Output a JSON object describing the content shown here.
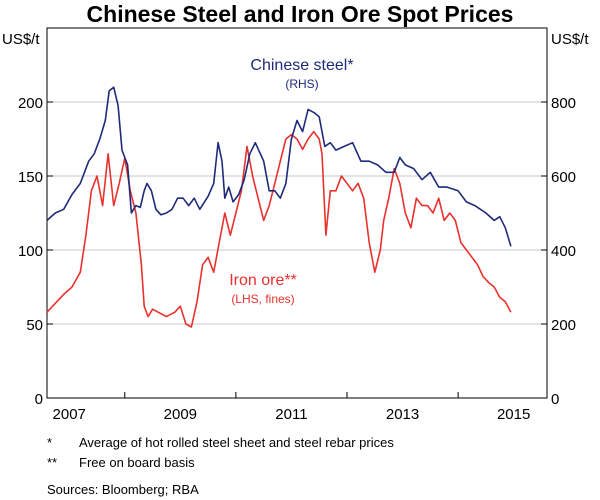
{
  "chart_data": {
    "type": "line",
    "title": "Chinese Steel and Iron Ore Spot Prices",
    "left_axis": {
      "unit": "US$/t",
      "ylim": [
        0,
        250
      ],
      "ticks": [
        0,
        50,
        100,
        150,
        200
      ]
    },
    "right_axis": {
      "unit": "US$/t",
      "ylim": [
        0,
        1000
      ],
      "ticks": [
        0,
        200,
        400,
        600,
        800
      ]
    },
    "x_axis": {
      "xlim": [
        2006.6,
        2015.6
      ],
      "tick_labels": [
        "2007",
        "2009",
        "2011",
        "2013",
        "2015"
      ],
      "label_positions": [
        2007,
        2009,
        2011,
        2013,
        2015
      ],
      "major_ticks": [
        2008,
        2010,
        2012,
        2014
      ]
    },
    "grid": true,
    "series": [
      {
        "name": "Chinese steel*",
        "sub": "(RHS)",
        "axis": "right",
        "color": "#1f2a7a",
        "x": [
          2006.6,
          2006.75,
          2006.9,
          2007.05,
          2007.2,
          2007.35,
          2007.45,
          2007.55,
          2007.65,
          2007.72,
          2007.8,
          2007.88,
          2007.95,
          2008.05,
          2008.12,
          2008.2,
          2008.28,
          2008.35,
          2008.4,
          2008.48,
          2008.56,
          2008.65,
          2008.75,
          2008.85,
          2008.95,
          2009.05,
          2009.15,
          2009.25,
          2009.35,
          2009.5,
          2009.6,
          2009.68,
          2009.75,
          2009.8,
          2009.87,
          2009.95,
          2010.05,
          2010.15,
          2010.25,
          2010.35,
          2010.5,
          2010.6,
          2010.7,
          2010.8,
          2010.9,
          2011.0,
          2011.1,
          2011.2,
          2011.3,
          2011.42,
          2011.5,
          2011.6,
          2011.7,
          2011.8,
          2011.95,
          2012.1,
          2012.25,
          2012.4,
          2012.55,
          2012.7,
          2012.85,
          2012.95,
          2013.05,
          2013.2,
          2013.35,
          2013.5,
          2013.65,
          2013.8,
          2014.0,
          2014.15,
          2014.3,
          2014.5,
          2014.65,
          2014.75,
          2014.85,
          2014.95
        ],
        "y": [
          480,
          500,
          510,
          550,
          580,
          640,
          660,
          700,
          750,
          830,
          840,
          790,
          670,
          630,
          500,
          520,
          515,
          560,
          580,
          560,
          510,
          495,
          500,
          510,
          540,
          540,
          520,
          540,
          510,
          545,
          580,
          690,
          640,
          540,
          570,
          530,
          550,
          590,
          660,
          690,
          640,
          560,
          560,
          540,
          580,
          700,
          750,
          720,
          780,
          770,
          760,
          680,
          690,
          670,
          680,
          690,
          640,
          640,
          630,
          610,
          610,
          650,
          630,
          620,
          590,
          610,
          570,
          570,
          560,
          530,
          520,
          500,
          480,
          490,
          460,
          410
        ]
      },
      {
        "name": "Iron ore**",
        "sub": "(LHS, fines)",
        "axis": "left",
        "color": "#e8322e",
        "x": [
          2006.6,
          2006.75,
          2006.9,
          2007.05,
          2007.2,
          2007.3,
          2007.4,
          2007.5,
          2007.6,
          2007.7,
          2007.8,
          2007.9,
          2008.0,
          2008.1,
          2008.2,
          2008.3,
          2008.35,
          2008.42,
          2008.5,
          2008.6,
          2008.75,
          2008.9,
          2009.0,
          2009.1,
          2009.2,
          2009.3,
          2009.4,
          2009.5,
          2009.6,
          2009.7,
          2009.8,
          2009.9,
          2010.0,
          2010.1,
          2010.2,
          2010.3,
          2010.4,
          2010.5,
          2010.6,
          2010.7,
          2010.8,
          2010.9,
          2011.0,
          2011.1,
          2011.2,
          2011.3,
          2011.4,
          2011.5,
          2011.55,
          2011.62,
          2011.7,
          2011.8,
          2011.9,
          2012.0,
          2012.1,
          2012.2,
          2012.3,
          2012.4,
          2012.5,
          2012.6,
          2012.66,
          2012.75,
          2012.85,
          2012.95,
          2013.05,
          2013.15,
          2013.25,
          2013.35,
          2013.45,
          2013.55,
          2013.65,
          2013.75,
          2013.85,
          2013.95,
          2014.05,
          2014.15,
          2014.25,
          2014.35,
          2014.45,
          2014.55,
          2014.65,
          2014.75,
          2014.85,
          2014.95
        ],
        "y": [
          58,
          64,
          70,
          75,
          85,
          110,
          140,
          150,
          130,
          165,
          130,
          145,
          162,
          140,
          125,
          90,
          62,
          55,
          60,
          58,
          55,
          58,
          62,
          50,
          48,
          65,
          90,
          95,
          85,
          105,
          125,
          110,
          125,
          140,
          170,
          150,
          135,
          120,
          130,
          145,
          160,
          175,
          178,
          175,
          168,
          175,
          180,
          175,
          165,
          110,
          140,
          140,
          150,
          145,
          140,
          145,
          135,
          105,
          85,
          100,
          120,
          135,
          155,
          145,
          125,
          115,
          135,
          130,
          130,
          125,
          135,
          120,
          125,
          120,
          105,
          100,
          95,
          90,
          82,
          78,
          75,
          68,
          65,
          58
        ]
      }
    ]
  },
  "notes": [
    {
      "mark": "*",
      "text": "Average of hot rolled steel sheet and steel rebar prices"
    },
    {
      "mark": "**",
      "text": "Free on board basis"
    }
  ],
  "sources": "Sources:  Bloomberg; RBA"
}
